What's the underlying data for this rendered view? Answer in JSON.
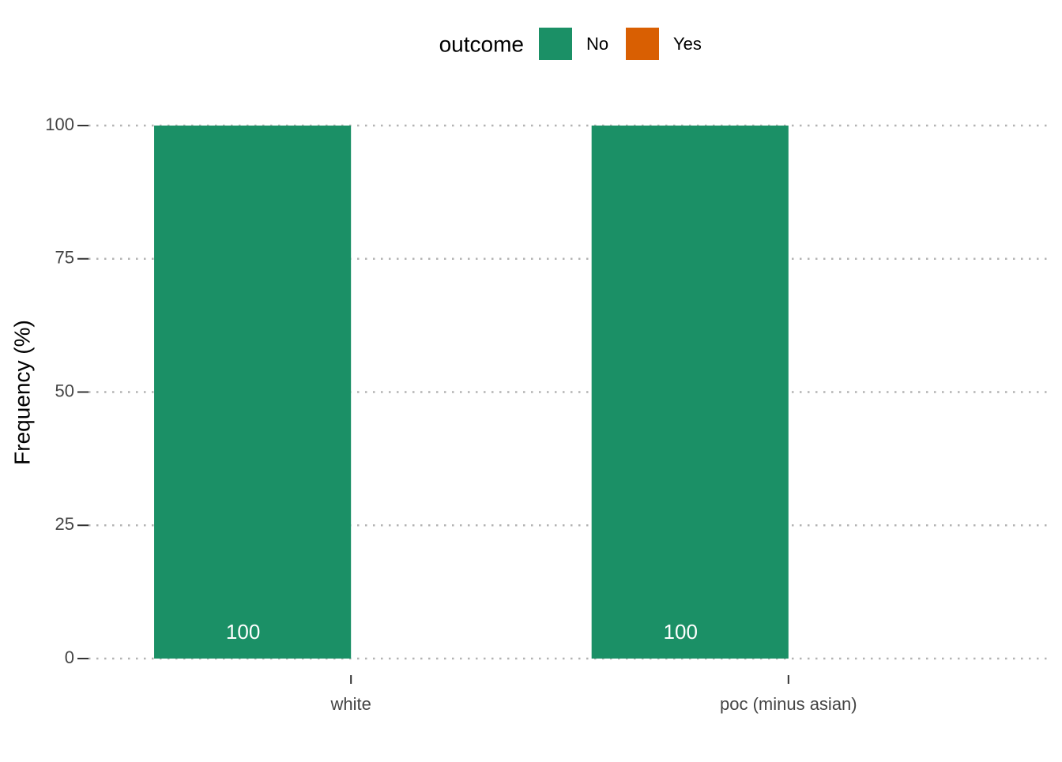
{
  "chart_data": {
    "type": "bar",
    "y_label": "Frequency (%)",
    "legend_title": "outcome",
    "legend_position": "top",
    "categories": [
      "white",
      "poc (minus asian)"
    ],
    "series": [
      {
        "name": "No",
        "color": "#1b9066",
        "values": [
          100,
          100
        ],
        "show_value_labels": true
      },
      {
        "name": "Yes",
        "color": "#d95f02",
        "values": [
          0,
          0
        ],
        "show_value_labels": false
      }
    ],
    "ylim": [
      0,
      100
    ],
    "yticks": [
      0,
      25,
      50,
      75,
      100
    ],
    "grid": true
  }
}
